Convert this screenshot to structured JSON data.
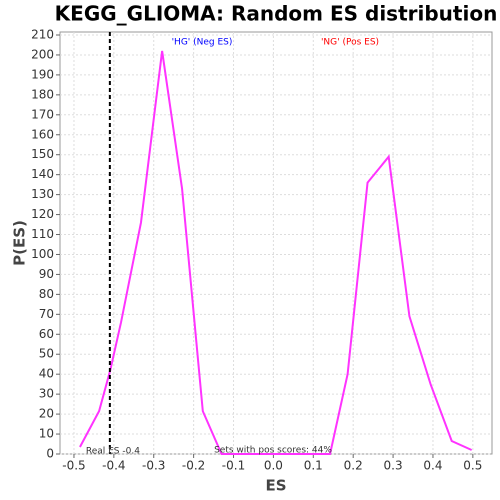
{
  "chart_data": {
    "type": "line",
    "title": "KEGG_GLIOMA: Random ES distribution",
    "x_label": "ES",
    "y_label": "P(ES)",
    "x": [
      -0.485,
      -0.437,
      -0.409,
      -0.382,
      -0.332,
      -0.279,
      -0.229,
      -0.177,
      -0.13,
      0.142,
      0.186,
      0.236,
      0.289,
      0.341,
      0.394,
      0.447,
      0.497
    ],
    "series": [
      {
        "name": "P(ES)",
        "color": "#ff33ff",
        "values": [
          3.5,
          21.5,
          42,
          66,
          116,
          202,
          133,
          21.5,
          0,
          0,
          40,
          136,
          149,
          69,
          35,
          6.5,
          2
        ]
      }
    ],
    "xlim": [
      -0.535,
      0.548
    ],
    "ylim": [
      0,
      211.5
    ],
    "xticks": [
      -0.5,
      -0.4,
      -0.3,
      -0.2,
      -0.1,
      {
        "value": 0,
        "label": "0.0"
      },
      0.1,
      0.2,
      0.3,
      0.4,
      0.5
    ],
    "yticks": [
      0,
      10,
      20,
      30,
      40,
      50,
      60,
      70,
      80,
      90,
      100,
      110,
      120,
      130,
      140,
      150,
      160,
      170,
      180,
      190,
      200,
      210
    ],
    "grid": true,
    "real_es": -0.41,
    "real_es_label": "Real ES -0.4",
    "pos_scores_note": "Sets with pos scores: 44%",
    "neg_label": "'HG' (Neg ES)",
    "neg_label_color": "#0000ff",
    "pos_label": "'NG' (Pos ES)",
    "pos_label_color": "#ff0000"
  }
}
